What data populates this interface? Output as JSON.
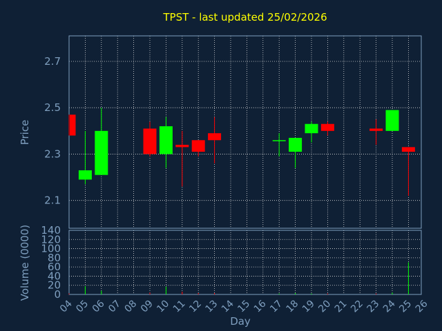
{
  "chart_data": [
    {
      "type": "candlestick",
      "title": "TPST - last updated 25/02/2026",
      "xlabel": "Day",
      "ylabel": "Price",
      "ylim": [
        1.98,
        2.81
      ],
      "yticks": [
        "2.1",
        "2.3",
        "2.5",
        "2.7"
      ],
      "x": [
        "04",
        "05",
        "06",
        "07",
        "08",
        "09",
        "10",
        "11",
        "12",
        "13",
        "14",
        "15",
        "16",
        "17",
        "18",
        "19",
        "20",
        "21",
        "22",
        "23",
        "24",
        "25",
        "26"
      ],
      "grid": true,
      "series": [
        {
          "day": "04",
          "open": 2.47,
          "high": 2.47,
          "low": 2.38,
          "close": 2.38
        },
        {
          "day": "05",
          "open": 2.19,
          "high": 2.4,
          "low": 2.17,
          "close": 2.23
        },
        {
          "day": "06",
          "open": 2.21,
          "high": 2.5,
          "low": 2.21,
          "close": 2.4
        },
        {
          "day": "09",
          "open": 2.41,
          "high": 2.44,
          "low": 2.29,
          "close": 2.3
        },
        {
          "day": "10",
          "open": 2.3,
          "high": 2.46,
          "low": 2.24,
          "close": 2.42
        },
        {
          "day": "11",
          "open": 2.34,
          "high": 2.4,
          "low": 2.16,
          "close": 2.33
        },
        {
          "day": "12",
          "open": 2.36,
          "high": 2.36,
          "low": 2.29,
          "close": 2.31
        },
        {
          "day": "13",
          "open": 2.39,
          "high": 2.46,
          "low": 2.26,
          "close": 2.36
        },
        {
          "day": "17",
          "open": 2.36,
          "high": 2.39,
          "low": 2.29,
          "close": 2.36
        },
        {
          "day": "18",
          "open": 2.31,
          "high": 2.37,
          "low": 2.24,
          "close": 2.37
        },
        {
          "day": "19",
          "open": 2.39,
          "high": 2.44,
          "low": 2.35,
          "close": 2.43
        },
        {
          "day": "20",
          "open": 2.43,
          "high": 2.44,
          "low": 2.38,
          "close": 2.4
        },
        {
          "day": "23",
          "open": 2.41,
          "high": 2.45,
          "low": 2.34,
          "close": 2.4
        },
        {
          "day": "24",
          "open": 2.4,
          "high": 2.49,
          "low": 2.4,
          "close": 2.49
        },
        {
          "day": "25",
          "open": 2.33,
          "high": 2.33,
          "low": 2.12,
          "close": 2.31
        }
      ]
    },
    {
      "type": "bar",
      "ylabel": "Volume (0000)",
      "ylim": [
        0,
        140
      ],
      "yticks": [
        "0",
        "20",
        "40",
        "60",
        "80",
        "100",
        "120",
        "140"
      ],
      "x": [
        "04",
        "05",
        "06",
        "07",
        "08",
        "09",
        "10",
        "11",
        "12",
        "13",
        "14",
        "15",
        "16",
        "17",
        "18",
        "19",
        "20",
        "21",
        "22",
        "23",
        "24",
        "25",
        "26"
      ],
      "series": [
        {
          "day": "04",
          "value": 2
        },
        {
          "day": "05",
          "value": 18
        },
        {
          "day": "06",
          "value": 8
        },
        {
          "day": "09",
          "value": 4
        },
        {
          "day": "10",
          "value": 17
        },
        {
          "day": "11",
          "value": 6
        },
        {
          "day": "12",
          "value": 3
        },
        {
          "day": "13",
          "value": 3
        },
        {
          "day": "17",
          "value": 2
        },
        {
          "day": "18",
          "value": 3
        },
        {
          "day": "19",
          "value": 2
        },
        {
          "day": "20",
          "value": 2
        },
        {
          "day": "23",
          "value": 2
        },
        {
          "day": "24",
          "value": 4
        },
        {
          "day": "25",
          "value": 70
        }
      ]
    }
  ],
  "colors": {
    "background": "#0f2035",
    "title": "#ffff00",
    "axis_text": "#7f9fbf",
    "axis_line": "#7f9fbf",
    "grid": "#dddddd",
    "up": "#00ff00",
    "down": "#ff0000"
  }
}
